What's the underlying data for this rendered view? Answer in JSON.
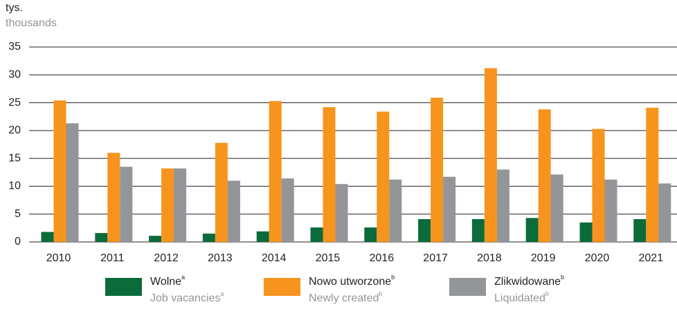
{
  "chart_data": {
    "type": "bar",
    "unit_label": "tys.",
    "unit_label_en": "thousands",
    "categories": [
      "2010",
      "2011",
      "2012",
      "2013",
      "2014",
      "2015",
      "2016",
      "2017",
      "2018",
      "2019",
      "2020",
      "2021"
    ],
    "series": [
      {
        "name": "Wolne",
        "name_en": "Job vacancies",
        "note": "a",
        "color": "#0b6b3a",
        "values": [
          1.8,
          1.6,
          1.1,
          1.5,
          1.9,
          2.6,
          2.6,
          4.1,
          4.1,
          4.3,
          3.5,
          4.1
        ]
      },
      {
        "name": "Nowo utworzone",
        "name_en": "Newly created",
        "note": "b",
        "color": "#f7941d",
        "values": [
          25.4,
          16.0,
          13.2,
          17.8,
          25.3,
          24.2,
          23.4,
          25.9,
          31.2,
          23.8,
          20.3,
          24.1
        ]
      },
      {
        "name": "Zlikwidowane",
        "name_en": "Liquidated",
        "note": "b",
        "color": "#939598",
        "values": [
          21.3,
          13.5,
          13.2,
          11.0,
          11.4,
          10.4,
          11.2,
          11.7,
          13.0,
          12.1,
          11.2,
          10.5
        ]
      }
    ],
    "ylim": [
      0,
      35
    ],
    "yticks": [
      0,
      5,
      10,
      15,
      20,
      25,
      30,
      35
    ],
    "grid": true
  }
}
